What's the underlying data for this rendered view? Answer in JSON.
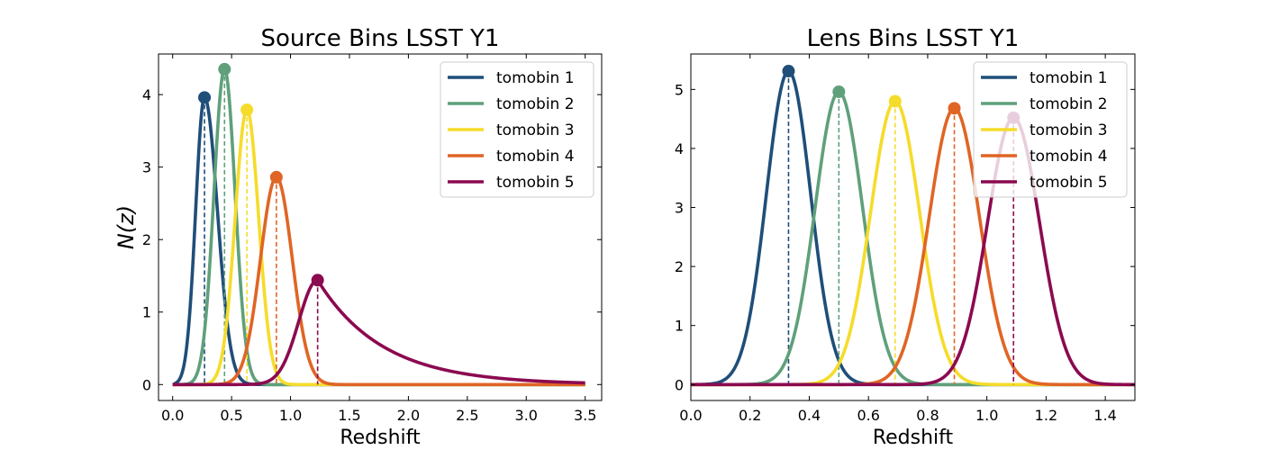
{
  "chart_data": [
    {
      "type": "line",
      "title": "Source Bins LSST Y1",
      "xlabel": "Redshift",
      "ylabel": "N(z)",
      "xlim": [
        -0.12,
        3.64
      ],
      "ylim": [
        -0.22,
        4.56
      ],
      "xticks": [
        "0.0",
        "0.5",
        "1.0",
        "1.5",
        "2.0",
        "2.5",
        "3.0",
        "3.5"
      ],
      "xtick_values": [
        0,
        0.5,
        1.0,
        1.5,
        2.0,
        2.5,
        3.0,
        3.5
      ],
      "yticks": [
        "0",
        "1",
        "2",
        "3",
        "4"
      ],
      "ytick_values": [
        0,
        1,
        2,
        3,
        4
      ],
      "legend_position": "top-right",
      "grid": false,
      "x_range": [
        0,
        3.5
      ],
      "series": [
        {
          "name": "tomobin 1",
          "color": "#1f4e79",
          "shape": "skewed",
          "peak_z": 0.27,
          "peak_value": 3.96,
          "sigma_left": 0.075,
          "sigma_right": 0.11
        },
        {
          "name": "tomobin 2",
          "color": "#5fa07a",
          "shape": "gaussian",
          "peak_z": 0.44,
          "peak_value": 4.35,
          "sigma": 0.09
        },
        {
          "name": "tomobin 3",
          "color": "#f5dc2a",
          "shape": "gaussian",
          "peak_z": 0.63,
          "peak_value": 3.79,
          "sigma": 0.1
        },
        {
          "name": "tomobin 4",
          "color": "#e06525",
          "shape": "gaussian",
          "peak_z": 0.88,
          "peak_value": 2.86,
          "sigma": 0.135
        },
        {
          "name": "tomobin 5",
          "color": "#8b0a50",
          "shape": "skewed",
          "peak_z": 1.23,
          "peak_value": 1.44,
          "sigma_left": 0.16,
          "tail_scale": 0.55
        }
      ]
    },
    {
      "type": "line",
      "title": "Lens Bins LSST Y1",
      "xlabel": "Redshift",
      "ylabel": "",
      "xlim": [
        0.0,
        1.5
      ],
      "ylim": [
        -0.27,
        5.6
      ],
      "xticks": [
        "0.0",
        "0.2",
        "0.4",
        "0.6",
        "0.8",
        "1.0",
        "1.2",
        "1.4"
      ],
      "xtick_values": [
        0,
        0.2,
        0.4,
        0.6,
        0.8,
        1.0,
        1.2,
        1.4
      ],
      "yticks": [
        "0",
        "1",
        "2",
        "3",
        "4",
        "5"
      ],
      "ytick_values": [
        0,
        1,
        2,
        3,
        4,
        5
      ],
      "legend_position": "top-right",
      "grid": false,
      "x_range": [
        0,
        1.5
      ],
      "series": [
        {
          "name": "tomobin 1",
          "color": "#1f4e79",
          "shape": "gaussian",
          "peak_z": 0.33,
          "peak_value": 5.31,
          "sigma": 0.075
        },
        {
          "name": "tomobin 2",
          "color": "#5fa07a",
          "shape": "gaussian",
          "peak_z": 0.5,
          "peak_value": 4.96,
          "sigma": 0.08
        },
        {
          "name": "tomobin 3",
          "color": "#f5dc2a",
          "shape": "gaussian",
          "peak_z": 0.69,
          "peak_value": 4.8,
          "sigma": 0.083
        },
        {
          "name": "tomobin 4",
          "color": "#e06525",
          "shape": "gaussian",
          "peak_z": 0.89,
          "peak_value": 4.68,
          "sigma": 0.085
        },
        {
          "name": "tomobin 5",
          "color": "#8b0a50",
          "shape": "gaussian",
          "peak_z": 1.09,
          "peak_value": 4.52,
          "sigma": 0.088
        }
      ]
    }
  ]
}
